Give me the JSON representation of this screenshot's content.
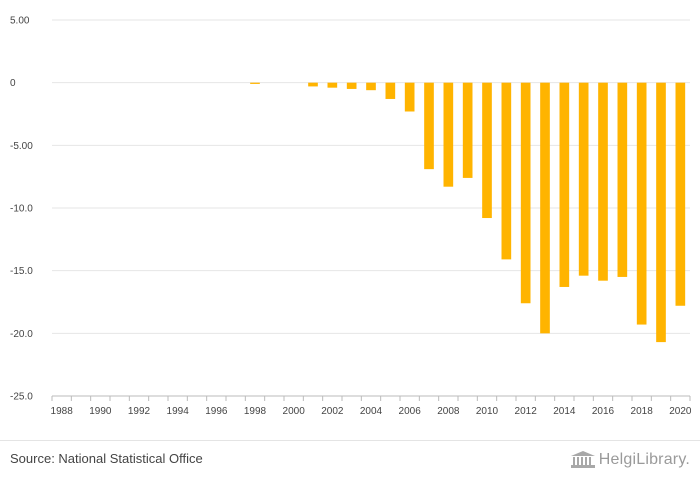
{
  "chart_data": {
    "type": "bar",
    "title": "",
    "xlabel": "",
    "ylabel": "",
    "ylim": [
      -25,
      5
    ],
    "y_ticks": [
      "5.00",
      "0",
      "-5.00",
      "-10.0",
      "-15.0",
      "-20.0",
      "-25.0"
    ],
    "y_tick_values": [
      5,
      0,
      -5,
      -10,
      -15,
      -20,
      -25
    ],
    "x_tick_labels": [
      "1988",
      "1990",
      "1992",
      "1994",
      "1996",
      "1998",
      "2000",
      "2002",
      "2004",
      "2006",
      "2008",
      "2010",
      "2012",
      "2014",
      "2016",
      "2018",
      "2020"
    ],
    "grid": true,
    "bar_color": "#FFB400",
    "categories": [
      1988,
      1989,
      1990,
      1991,
      1992,
      1993,
      1994,
      1995,
      1996,
      1997,
      1998,
      1999,
      2000,
      2001,
      2002,
      2003,
      2004,
      2005,
      2006,
      2007,
      2008,
      2009,
      2010,
      2011,
      2012,
      2013,
      2014,
      2015,
      2016,
      2017,
      2018,
      2019,
      2020
    ],
    "values": [
      0,
      0,
      0,
      0,
      0,
      0,
      0,
      0,
      0,
      0,
      -0.1,
      0,
      0,
      -0.3,
      -0.4,
      -0.5,
      -0.6,
      -1.3,
      -2.3,
      -6.9,
      -8.3,
      -7.6,
      -10.8,
      -14.1,
      -17.6,
      -20.0,
      -16.3,
      -15.4,
      -15.8,
      -15.5,
      -19.3,
      -20.7,
      -17.8
    ]
  },
  "footer": {
    "source": "Source: National Statistical Office",
    "logo_text": "HelgiLibrary."
  },
  "colors": {
    "gridline": "#e6e6e6",
    "axis": "#bbbbbb",
    "text": "#444444"
  }
}
